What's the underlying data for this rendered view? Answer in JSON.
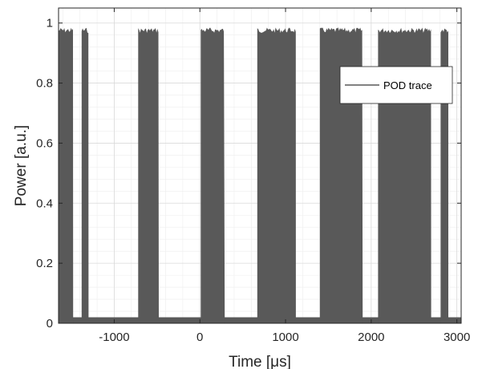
{
  "chart_data": {
    "type": "area",
    "title": "",
    "xlabel": "Time [μs]",
    "ylabel": "Power [a.u.]",
    "xlim": [
      -1650,
      3050
    ],
    "ylim": [
      0,
      1.05
    ],
    "x_ticks": [
      -1000,
      0,
      1000,
      2000,
      3000
    ],
    "x_tick_labels": [
      "-1000",
      "0",
      "1000",
      "2000",
      "3000"
    ],
    "y_ticks": [
      0,
      0.2,
      0.4,
      0.6,
      0.8,
      1
    ],
    "y_tick_labels": [
      "0",
      "0.2",
      "0.4",
      "0.6",
      "0.8",
      "1"
    ],
    "grid": true,
    "minor_grid": true,
    "legend_position": "right",
    "baseline_level": 0.02,
    "series": [
      {
        "name": "POD trace",
        "color": "#595959",
        "on_level": 0.985,
        "pulses": [
          {
            "start": -1650,
            "end": -1480
          },
          {
            "start": -1380,
            "end": -1300
          },
          {
            "start": -720,
            "end": -480
          },
          {
            "start": 10,
            "end": 290
          },
          {
            "start": 670,
            "end": 1120
          },
          {
            "start": 1400,
            "end": 1900
          },
          {
            "start": 2080,
            "end": 2700
          },
          {
            "start": 2810,
            "end": 2900
          }
        ]
      }
    ]
  }
}
